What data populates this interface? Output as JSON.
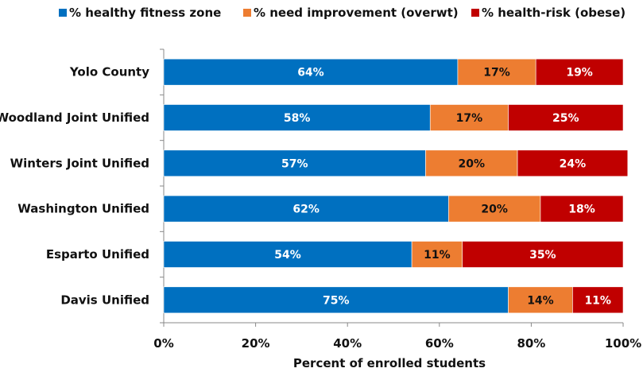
{
  "chart_data": {
    "type": "bar",
    "orientation": "horizontal",
    "stacked": true,
    "percent_stacked": true,
    "title": "",
    "xlabel": "Percent of enrolled students",
    "ylabel": "",
    "xlim": [
      0,
      100
    ],
    "x_ticks": [
      "0%",
      "20%",
      "40%",
      "60%",
      "80%",
      "100%"
    ],
    "legend_position": "top",
    "grid": false,
    "categories": [
      "Yolo County",
      "Woodland Joint Unified",
      "Winters Joint Unified",
      "Washington Unified",
      "Esparto Unified",
      "Davis Unified"
    ],
    "series": [
      {
        "name": "% healthy fitness zone",
        "color": "#0070c0",
        "label_color": "#ffffff",
        "values": [
          64,
          58,
          57,
          62,
          54,
          75
        ],
        "labels": [
          "64%",
          "58%",
          "57%",
          "62%",
          "54%",
          "75%"
        ]
      },
      {
        "name": "% need improvement (overwt)",
        "color": "#ed7d31",
        "label_color": "#111111",
        "values": [
          17,
          17,
          20,
          20,
          11,
          14
        ],
        "labels": [
          "17%",
          "17%",
          "20%",
          "20%",
          "11%",
          "14%"
        ]
      },
      {
        "name": "% health-risk (obese)",
        "color": "#c00000",
        "label_color": "#ffffff",
        "values": [
          19,
          25,
          24,
          18,
          35,
          11
        ],
        "labels": [
          "19%",
          "25%",
          "24%",
          "18%",
          "35%",
          "11%"
        ]
      }
    ]
  }
}
